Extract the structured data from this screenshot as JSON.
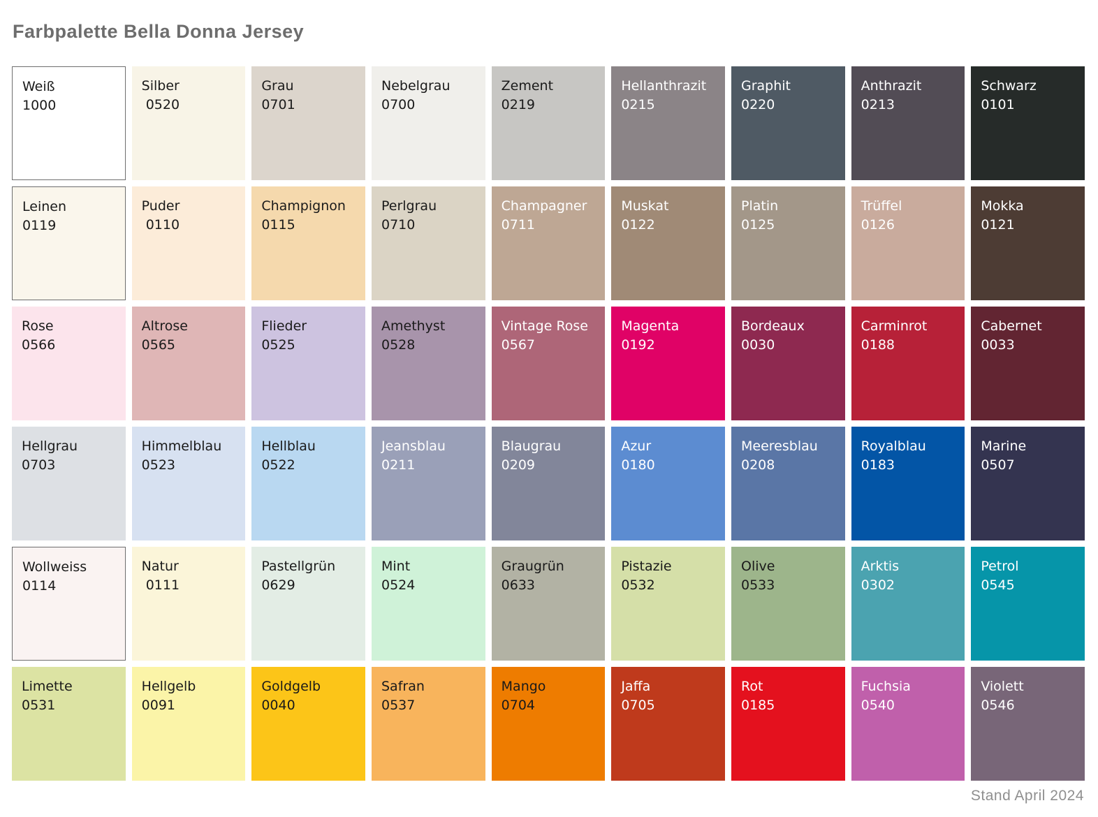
{
  "title": "Farbpalette Bella Donna Jersey",
  "footer": "Stand April 2024",
  "palette": {
    "columns": 9,
    "rows": 6,
    "text_dark": "#1a1a1a",
    "text_light": "#ffffff",
    "light_swatch_border": "#6e6e6e",
    "swatches": [
      {
        "name": "Weiß",
        "code": "1000",
        "color": "#ffffff",
        "text": "dark",
        "border": true
      },
      {
        "name": "Silber",
        "code": " 0520",
        "color": "#f8f4e7",
        "text": "dark",
        "border": false
      },
      {
        "name": "Grau",
        "code": "0701",
        "color": "#dcd5cc",
        "text": "dark",
        "border": false
      },
      {
        "name": "Nebelgrau",
        "code": "0700",
        "color": "#f0efeb",
        "text": "dark",
        "border": false
      },
      {
        "name": "Zement",
        "code": "0219",
        "color": "#c7c6c3",
        "text": "dark",
        "border": false
      },
      {
        "name": "Hellanthrazit",
        "code": "0215",
        "color": "#8b8487",
        "text": "light",
        "border": false
      },
      {
        "name": "Graphit",
        "code": "0220",
        "color": "#4f5a64",
        "text": "light",
        "border": false
      },
      {
        "name": "Anthrazit",
        "code": "0213",
        "color": "#524c55",
        "text": "light",
        "border": false
      },
      {
        "name": "Schwarz",
        "code": "0101",
        "color": "#262b29",
        "text": "light",
        "border": false
      },
      {
        "name": "Leinen",
        "code": "0119",
        "color": "#faf6ec",
        "text": "dark",
        "border": true
      },
      {
        "name": "Puder",
        "code": " 0110",
        "color": "#fcecd9",
        "text": "dark",
        "border": false
      },
      {
        "name": "Champignon",
        "code": "0115",
        "color": "#f5d9ad",
        "text": "dark",
        "border": false
      },
      {
        "name": "Perlgrau",
        "code": "0710",
        "color": "#dbd4c5",
        "text": "dark",
        "border": false
      },
      {
        "name": "Champagner",
        "code": "0711",
        "color": "#bea794",
        "text": "light",
        "border": false
      },
      {
        "name": "Muskat",
        "code": "0122",
        "color": "#a08a76",
        "text": "light",
        "border": false
      },
      {
        "name": "Platin",
        "code": "0125",
        "color": "#a39789",
        "text": "light",
        "border": false
      },
      {
        "name": "Trüffel",
        "code": "0126",
        "color": "#c9ab9d",
        "text": "light",
        "border": false
      },
      {
        "name": "Mokka",
        "code": "0121",
        "color": "#4d3c34",
        "text": "light",
        "border": false
      },
      {
        "name": "Rose",
        "code": "0566",
        "color": "#fce4ec",
        "text": "dark",
        "border": false
      },
      {
        "name": "Altrose",
        "code": "0565",
        "color": "#dfb6b6",
        "text": "dark",
        "border": false
      },
      {
        "name": "Flieder",
        "code": "0525",
        "color": "#cdc3e0",
        "text": "dark",
        "border": false
      },
      {
        "name": "Amethyst",
        "code": "0528",
        "color": "#a894ab",
        "text": "dark",
        "border": false
      },
      {
        "name": "Vintage Rose",
        "code": "0567",
        "color": "#ae6678",
        "text": "light",
        "border": false
      },
      {
        "name": "Magenta",
        "code": "0192",
        "color": "#e00266",
        "text": "light",
        "border": false
      },
      {
        "name": "Bordeaux",
        "code": "0030",
        "color": "#8e2950",
        "text": "light",
        "border": false
      },
      {
        "name": "Carminrot",
        "code": "0188",
        "color": "#b72138",
        "text": "light",
        "border": false
      },
      {
        "name": "Cabernet",
        "code": "0033",
        "color": "#622532",
        "text": "light",
        "border": false
      },
      {
        "name": "Hellgrau",
        "code": "0703",
        "color": "#dde0e4",
        "text": "dark",
        "border": false
      },
      {
        "name": "Himmelblau",
        "code": "0523",
        "color": "#d7e1f1",
        "text": "dark",
        "border": false
      },
      {
        "name": "Hellblau",
        "code": "0522",
        "color": "#b9d8f1",
        "text": "dark",
        "border": false
      },
      {
        "name": "Jeansblau",
        "code": "0211",
        "color": "#9aa0b8",
        "text": "light",
        "border": false
      },
      {
        "name": "Blaugrau",
        "code": "0209",
        "color": "#82869a",
        "text": "light",
        "border": false
      },
      {
        "name": "Azur",
        "code": "0180",
        "color": "#5c8cd1",
        "text": "light",
        "border": false
      },
      {
        "name": "Meeresblau",
        "code": "0208",
        "color": "#5a76a6",
        "text": "light",
        "border": false
      },
      {
        "name": "Royalblau",
        "code": "0183",
        "color": "#0355a6",
        "text": "light",
        "border": false
      },
      {
        "name": "Marine",
        "code": "0507",
        "color": "#343450",
        "text": "light",
        "border": false
      },
      {
        "name": "Wollweiss",
        "code": "0114",
        "color": "#faf3f2",
        "text": "dark",
        "border": true
      },
      {
        "name": "Natur",
        "code": " 0111",
        "color": "#fbf5d9",
        "text": "dark",
        "border": false
      },
      {
        "name": "Pastellgrün",
        "code": "0629",
        "color": "#e3ede5",
        "text": "dark",
        "border": false
      },
      {
        "name": "Mint",
        "code": "0524",
        "color": "#cff2d8",
        "text": "dark",
        "border": false
      },
      {
        "name": "Graugrün",
        "code": "0633",
        "color": "#b2b2a4",
        "text": "dark",
        "border": false
      },
      {
        "name": "Pistazie",
        "code": "0532",
        "color": "#d5dfa8",
        "text": "dark",
        "border": false
      },
      {
        "name": "Olive",
        "code": "0533",
        "color": "#9db58b",
        "text": "dark",
        "border": false
      },
      {
        "name": "Arktis",
        "code": "0302",
        "color": "#4ba3b0",
        "text": "light",
        "border": false
      },
      {
        "name": "Petrol",
        "code": "0545",
        "color": "#0695a9",
        "text": "light",
        "border": false
      },
      {
        "name": "Limette",
        "code": "0531",
        "color": "#dce3a3",
        "text": "dark",
        "border": false
      },
      {
        "name": "Hellgelb",
        "code": "0091",
        "color": "#fbf4a8",
        "text": "dark",
        "border": false
      },
      {
        "name": "Goldgelb",
        "code": "0040",
        "color": "#fcc518",
        "text": "dark",
        "border": false
      },
      {
        "name": "Safran",
        "code": "0537",
        "color": "#f8b45c",
        "text": "dark",
        "border": false
      },
      {
        "name": "Mango",
        "code": "0704",
        "color": "#ee7c00",
        "text": "dark",
        "border": false
      },
      {
        "name": "Jaffa",
        "code": "0705",
        "color": "#bf3a1c",
        "text": "light",
        "border": false
      },
      {
        "name": "Rot",
        "code": "0185",
        "color": "#e4111e",
        "text": "light",
        "border": false
      },
      {
        "name": "Fuchsia",
        "code": "0540",
        "color": "#c060ab",
        "text": "light",
        "border": false
      },
      {
        "name": "Violett",
        "code": "0546",
        "color": "#786678",
        "text": "light",
        "border": false
      }
    ]
  }
}
